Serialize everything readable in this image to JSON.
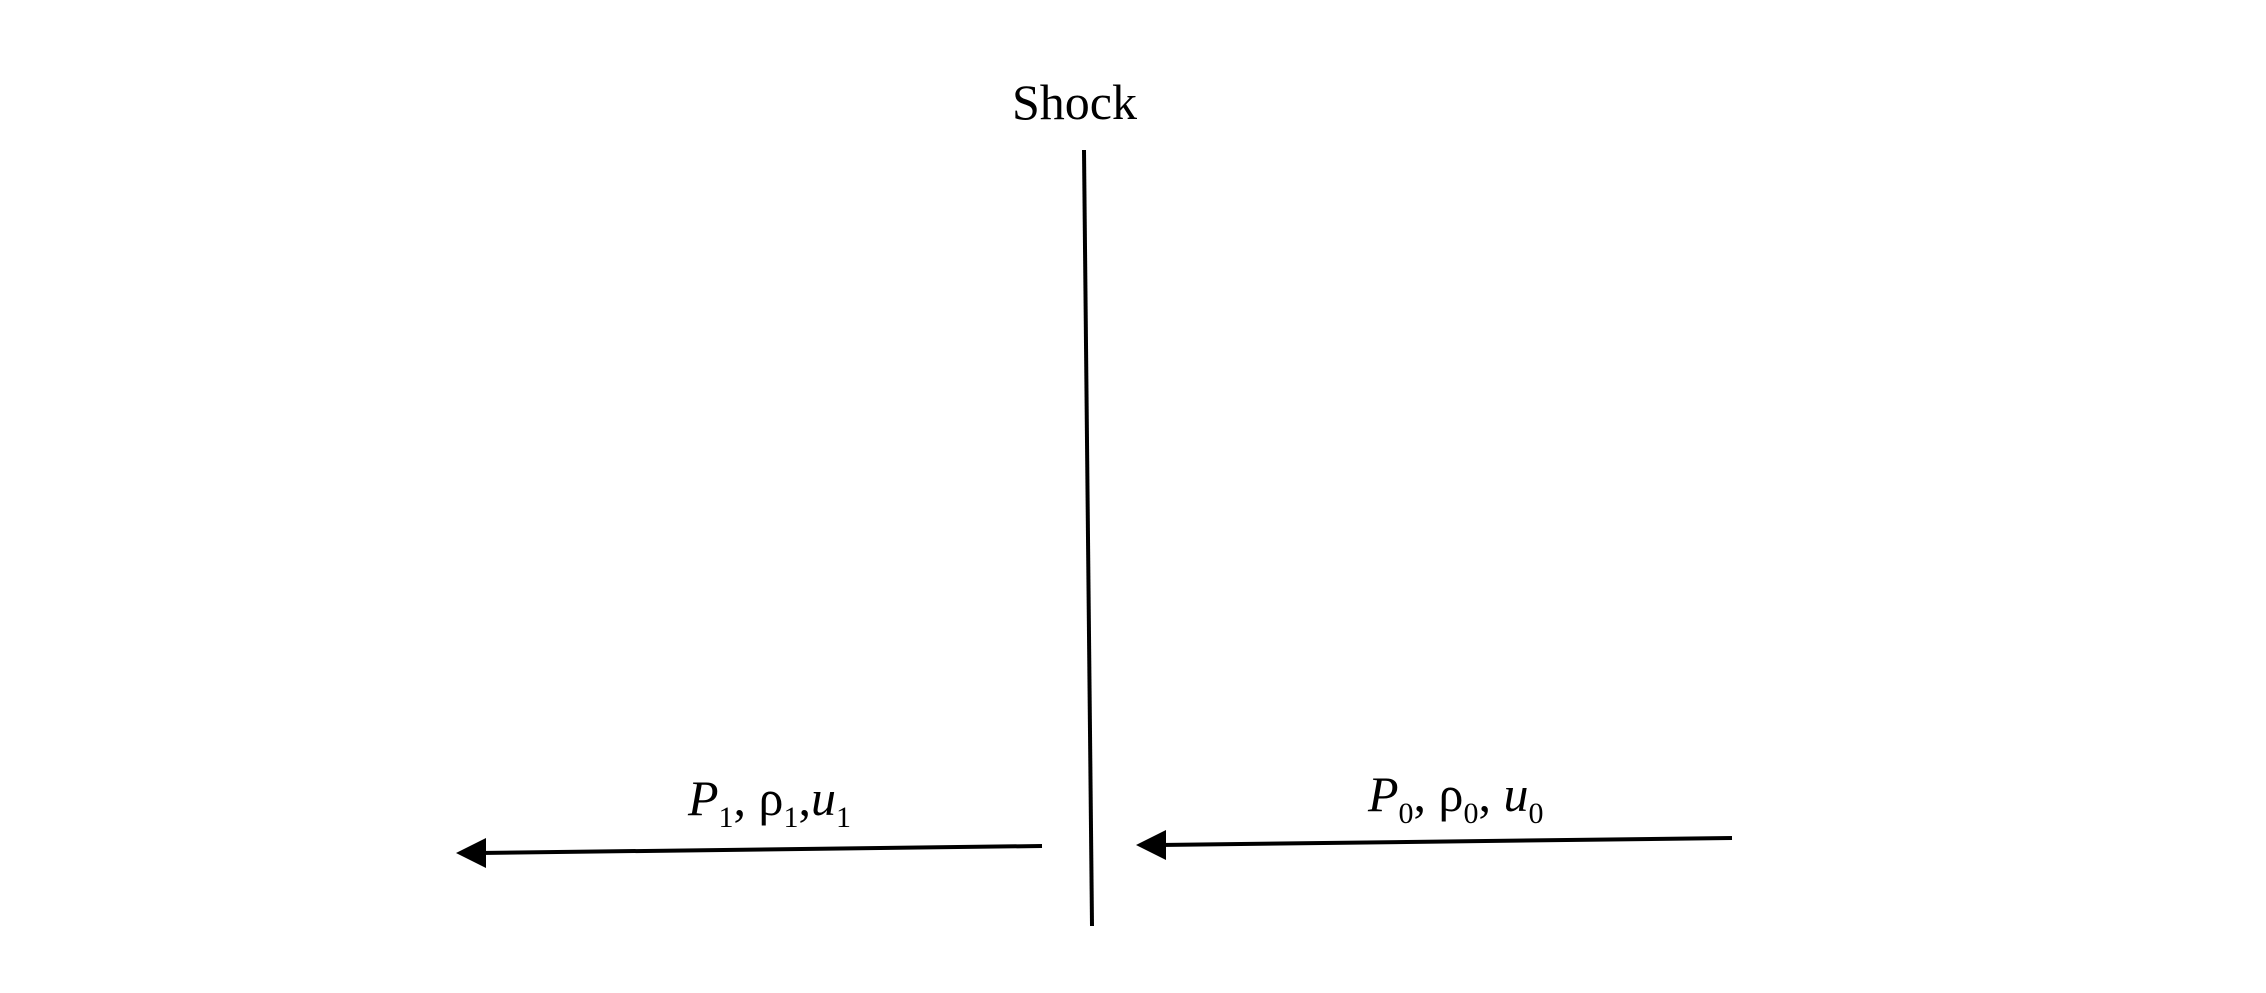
{
  "diagram": {
    "title": "Shock",
    "downstream": {
      "P": "P",
      "P_sub": "1",
      "rho": "ρ",
      "rho_sub": "1",
      "u": "u",
      "u_sub": "1",
      "sep": ","
    },
    "upstream": {
      "P": "P",
      "P_sub": "0",
      "rho": "ρ",
      "rho_sub": "0",
      "u": "u",
      "u_sub": "0",
      "sep": ","
    },
    "colors": {
      "ink": "#000000",
      "background": "#ffffff"
    }
  }
}
